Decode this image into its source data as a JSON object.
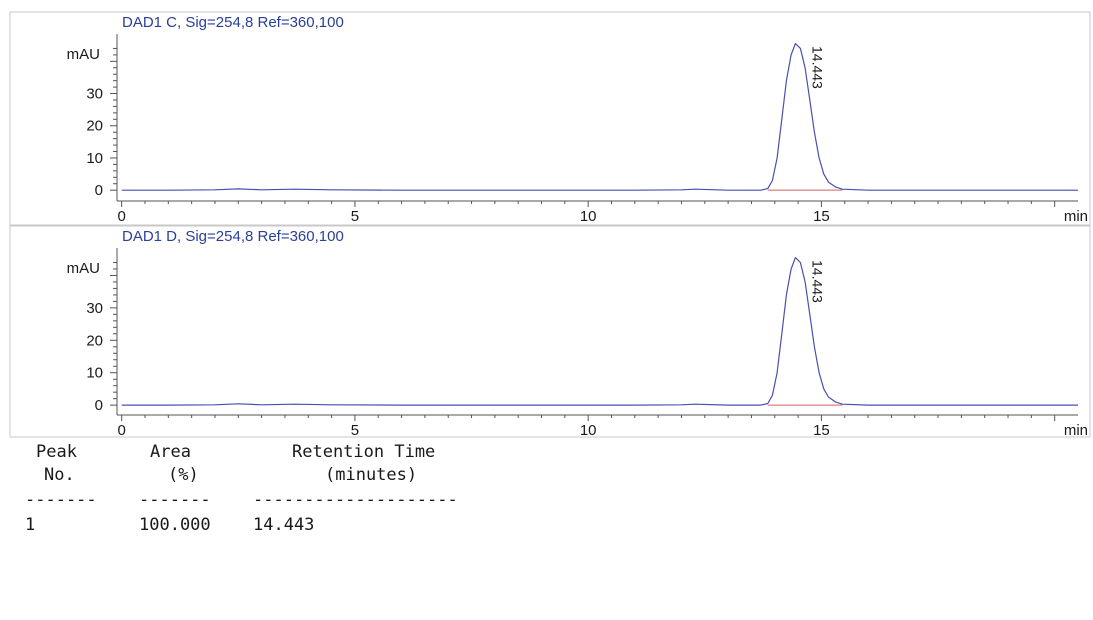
{
  "colors": {
    "trace": "#4a4fb0",
    "label": "#2a3f99",
    "baseline": "#d06060",
    "axis": "#555555",
    "text": "#1a1a1a"
  },
  "chart_data": [
    {
      "type": "line",
      "title": "DAD1 C, Sig=254,8 Ref=360,100",
      "ylabel": "mAU",
      "xlabel": "min",
      "xlim": [
        -0.1,
        20.5
      ],
      "ylim": [
        -1.5,
        46
      ],
      "x_ticks": [
        0,
        5,
        10,
        15
      ],
      "y_ticks": [
        0,
        10,
        20,
        30
      ],
      "peak": {
        "rt": 14.443,
        "height": 45.5,
        "label": "14.443",
        "start": 13.85,
        "end": 15.45
      },
      "series": [
        {
          "x": [
            0,
            1,
            2,
            2.5,
            3,
            3.7,
            4.5,
            6,
            8,
            10,
            11,
            12,
            12.3,
            13,
            13.7,
            13.85,
            13.95,
            14.05,
            14.15,
            14.25,
            14.35,
            14.443,
            14.55,
            14.65,
            14.75,
            14.85,
            14.95,
            15.05,
            15.15,
            15.3,
            15.45,
            16,
            18,
            20,
            20.5
          ],
          "y": [
            0,
            0,
            0.1,
            0.4,
            0.1,
            0.3,
            0.1,
            0,
            0,
            0,
            0,
            0.1,
            0.3,
            0,
            0,
            0.5,
            3,
            10,
            22,
            34,
            42,
            45.5,
            44,
            38,
            28,
            18,
            10,
            5,
            2.5,
            1,
            0.3,
            0,
            0,
            0,
            0
          ]
        }
      ]
    },
    {
      "type": "line",
      "title": "DAD1 D, Sig=254,8 Ref=360,100",
      "ylabel": "mAU",
      "xlabel": "min",
      "xlim": [
        -0.1,
        20.5
      ],
      "ylim": [
        -1.5,
        46
      ],
      "x_ticks": [
        0,
        5,
        10,
        15
      ],
      "y_ticks": [
        0,
        10,
        20,
        30
      ],
      "peak": {
        "rt": 14.443,
        "height": 45.5,
        "label": "14.443",
        "start": 13.85,
        "end": 15.45
      },
      "series": [
        {
          "x": [
            0,
            1,
            2,
            2.5,
            3,
            3.7,
            4.5,
            6,
            8,
            10,
            11,
            12,
            12.3,
            13,
            13.7,
            13.85,
            13.95,
            14.05,
            14.15,
            14.25,
            14.35,
            14.443,
            14.55,
            14.65,
            14.75,
            14.85,
            14.95,
            15.05,
            15.15,
            15.3,
            15.45,
            16,
            18,
            20,
            20.5
          ],
          "y": [
            0,
            0,
            0.1,
            0.4,
            0.1,
            0.3,
            0.1,
            0,
            0,
            0,
            0,
            0.1,
            0.3,
            0,
            0,
            0.5,
            3,
            10,
            22,
            34,
            42,
            45.5,
            44,
            38,
            28,
            18,
            10,
            5,
            2.5,
            1,
            0.3,
            0,
            0,
            0,
            0
          ]
        }
      ]
    }
  ],
  "peak_table": {
    "header_line1": [
      "Peak",
      "Area",
      "Retention Time"
    ],
    "header_line2": [
      "No.",
      "(%)",
      "(minutes)"
    ],
    "separators": [
      "-------",
      "-------",
      "--------------------"
    ],
    "rows": [
      {
        "peak_no": "1",
        "area": "100.000",
        "retention_time": "14.443"
      }
    ]
  }
}
